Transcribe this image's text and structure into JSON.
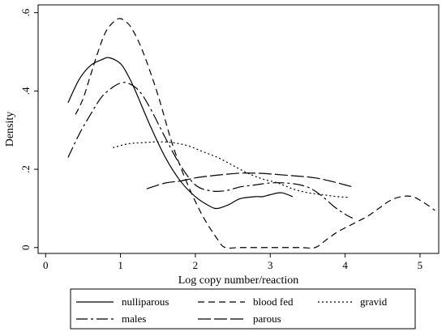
{
  "chart_data": {
    "type": "line",
    "xlabel": "Log copy number/reaction",
    "ylabel": "Density",
    "xlim": [
      -0.1,
      5.25
    ],
    "ylim": [
      -0.015,
      0.62
    ],
    "x_ticks": [
      {
        "value": 0,
        "label": "0"
      },
      {
        "value": 1,
        "label": "1"
      },
      {
        "value": 2,
        "label": "2"
      },
      {
        "value": 3,
        "label": "3"
      },
      {
        "value": 4,
        "label": "4"
      },
      {
        "value": 5,
        "label": "5"
      }
    ],
    "y_ticks": [
      {
        "value": 0,
        "label": "0"
      },
      {
        "value": 0.2,
        "label": ".2"
      },
      {
        "value": 0.4,
        "label": ".4"
      },
      {
        "value": 0.6,
        "label": ".6"
      }
    ],
    "grid": false,
    "legend_position": "bottom",
    "series": [
      {
        "name": "nulliparous",
        "dash": "solid",
        "points": [
          [
            0.3,
            0.37
          ],
          [
            0.45,
            0.43
          ],
          [
            0.6,
            0.465
          ],
          [
            0.75,
            0.48
          ],
          [
            0.85,
            0.485
          ],
          [
            1.0,
            0.47
          ],
          [
            1.1,
            0.44
          ],
          [
            1.2,
            0.4
          ],
          [
            1.4,
            0.31
          ],
          [
            1.6,
            0.23
          ],
          [
            1.8,
            0.17
          ],
          [
            2.0,
            0.13
          ],
          [
            2.2,
            0.105
          ],
          [
            2.3,
            0.1
          ],
          [
            2.45,
            0.11
          ],
          [
            2.6,
            0.125
          ],
          [
            2.8,
            0.13
          ],
          [
            2.9,
            0.13
          ],
          [
            3.0,
            0.135
          ],
          [
            3.15,
            0.14
          ],
          [
            3.3,
            0.13
          ]
        ]
      },
      {
        "name": "blood fed",
        "dash": "8,5",
        "points": [
          [
            0.4,
            0.34
          ],
          [
            0.5,
            0.38
          ],
          [
            0.6,
            0.44
          ],
          [
            0.7,
            0.5
          ],
          [
            0.8,
            0.55
          ],
          [
            0.9,
            0.575
          ],
          [
            0.98,
            0.585
          ],
          [
            1.05,
            0.58
          ],
          [
            1.15,
            0.56
          ],
          [
            1.3,
            0.5
          ],
          [
            1.5,
            0.39
          ],
          [
            1.7,
            0.26
          ],
          [
            1.9,
            0.16
          ],
          [
            2.1,
            0.08
          ],
          [
            2.3,
            0.02
          ],
          [
            2.4,
            0.0
          ],
          [
            2.6,
            0.0
          ],
          [
            3.0,
            0.0
          ],
          [
            3.4,
            0.0
          ],
          [
            3.6,
            0.0
          ],
          [
            3.75,
            0.02
          ],
          [
            3.9,
            0.04
          ],
          [
            4.1,
            0.06
          ],
          [
            4.3,
            0.08
          ],
          [
            4.45,
            0.1
          ],
          [
            4.6,
            0.12
          ],
          [
            4.75,
            0.13
          ],
          [
            4.9,
            0.13
          ],
          [
            5.05,
            0.115
          ],
          [
            5.2,
            0.095
          ]
        ]
      },
      {
        "name": "gravid",
        "dash": "2,3",
        "points": [
          [
            0.9,
            0.255
          ],
          [
            1.1,
            0.265
          ],
          [
            1.3,
            0.268
          ],
          [
            1.5,
            0.27
          ],
          [
            1.7,
            0.268
          ],
          [
            1.9,
            0.26
          ],
          [
            2.1,
            0.245
          ],
          [
            2.3,
            0.23
          ],
          [
            2.5,
            0.21
          ],
          [
            2.7,
            0.19
          ],
          [
            2.9,
            0.175
          ],
          [
            3.1,
            0.165
          ],
          [
            3.3,
            0.15
          ],
          [
            3.5,
            0.14
          ],
          [
            3.7,
            0.135
          ],
          [
            3.9,
            0.13
          ],
          [
            4.05,
            0.128
          ]
        ]
      },
      {
        "name": "males",
        "dash": "14,4,3,4",
        "points": [
          [
            0.3,
            0.23
          ],
          [
            0.45,
            0.29
          ],
          [
            0.6,
            0.34
          ],
          [
            0.75,
            0.385
          ],
          [
            0.9,
            0.41
          ],
          [
            1.0,
            0.42
          ],
          [
            1.1,
            0.42
          ],
          [
            1.25,
            0.4
          ],
          [
            1.4,
            0.355
          ],
          [
            1.6,
            0.28
          ],
          [
            1.8,
            0.21
          ],
          [
            2.0,
            0.16
          ],
          [
            2.2,
            0.145
          ],
          [
            2.4,
            0.145
          ],
          [
            2.6,
            0.155
          ],
          [
            2.8,
            0.16
          ],
          [
            3.0,
            0.165
          ],
          [
            3.2,
            0.165
          ],
          [
            3.4,
            0.16
          ],
          [
            3.55,
            0.15
          ],
          [
            3.7,
            0.13
          ],
          [
            3.85,
            0.105
          ],
          [
            4.0,
            0.085
          ],
          [
            4.1,
            0.075
          ]
        ]
      },
      {
        "name": "parous",
        "dash": "16,4",
        "points": [
          [
            1.35,
            0.15
          ],
          [
            1.6,
            0.165
          ],
          [
            1.8,
            0.17
          ],
          [
            2.0,
            0.178
          ],
          [
            2.2,
            0.183
          ],
          [
            2.4,
            0.187
          ],
          [
            2.6,
            0.19
          ],
          [
            2.8,
            0.19
          ],
          [
            3.0,
            0.188
          ],
          [
            3.2,
            0.185
          ],
          [
            3.4,
            0.182
          ],
          [
            3.6,
            0.178
          ],
          [
            3.8,
            0.17
          ],
          [
            4.0,
            0.16
          ],
          [
            4.1,
            0.155
          ]
        ]
      }
    ]
  }
}
